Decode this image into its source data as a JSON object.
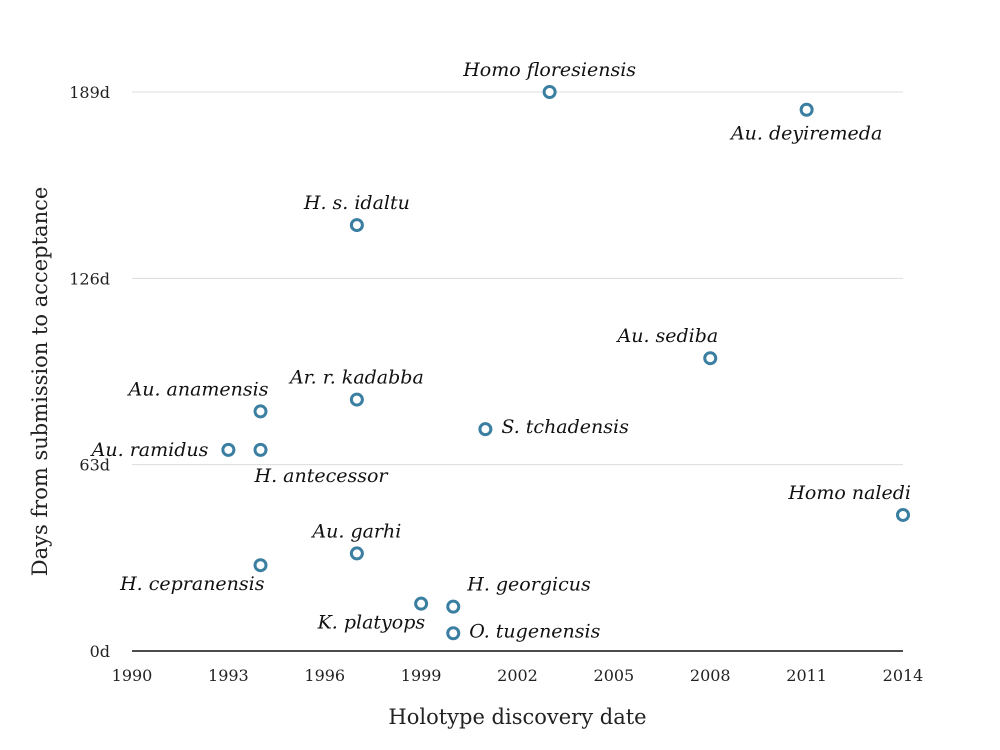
{
  "chart_data": {
    "type": "scatter",
    "xlabel": "Holotype discovery date",
    "ylabel": "Days from submission to acceptance",
    "xlim": [
      1990,
      2014
    ],
    "ylim": [
      0,
      189
    ],
    "x_ticks": [
      1990,
      1993,
      1996,
      1999,
      2002,
      2005,
      2008,
      2011,
      2014
    ],
    "y_ticks": [
      0,
      63,
      126,
      189
    ],
    "y_tick_suffix": "d",
    "grid": "horizontal",
    "point_color": "#3a7ea1",
    "points": [
      {
        "label": "Homo floresiensis",
        "x": 2003,
        "y": 189,
        "label_pos": "above"
      },
      {
        "label": "Au. deyiremeda",
        "x": 2011,
        "y": 183,
        "label_pos": "below"
      },
      {
        "label": "H. s. idaltu",
        "x": 1997,
        "y": 144,
        "label_pos": "above"
      },
      {
        "label": "Au. sediba",
        "x": 2008,
        "y": 99,
        "label_pos": "above-left"
      },
      {
        "label": "Ar. r. kadabba",
        "x": 1997,
        "y": 85,
        "label_pos": "above"
      },
      {
        "label": "Au. anamensis",
        "x": 1994,
        "y": 81,
        "label_pos": "above-left"
      },
      {
        "label": "S. tchadensis",
        "x": 2001,
        "y": 75,
        "label_pos": "right"
      },
      {
        "label": "Au. ramidus",
        "x": 1993,
        "y": 68,
        "label_pos": "left"
      },
      {
        "label": "H. antecessor",
        "x": 1994,
        "y": 68,
        "label_pos": "below-right"
      },
      {
        "label": "Homo naledi",
        "x": 2014,
        "y": 46,
        "label_pos": "above-left"
      },
      {
        "label": "Au. garhi",
        "x": 1997,
        "y": 33,
        "label_pos": "above"
      },
      {
        "label": "H. cepranensis",
        "x": 1994,
        "y": 29,
        "label_pos": "below-left"
      },
      {
        "label": "H. georgicus",
        "x": 2000,
        "y": 15,
        "label_pos": "above-right"
      },
      {
        "label": "K. platyops",
        "x": 1999,
        "y": 16,
        "label_pos": "below-left"
      },
      {
        "label": "O. tugenensis",
        "x": 2000,
        "y": 6,
        "label_pos": "right"
      }
    ]
  }
}
